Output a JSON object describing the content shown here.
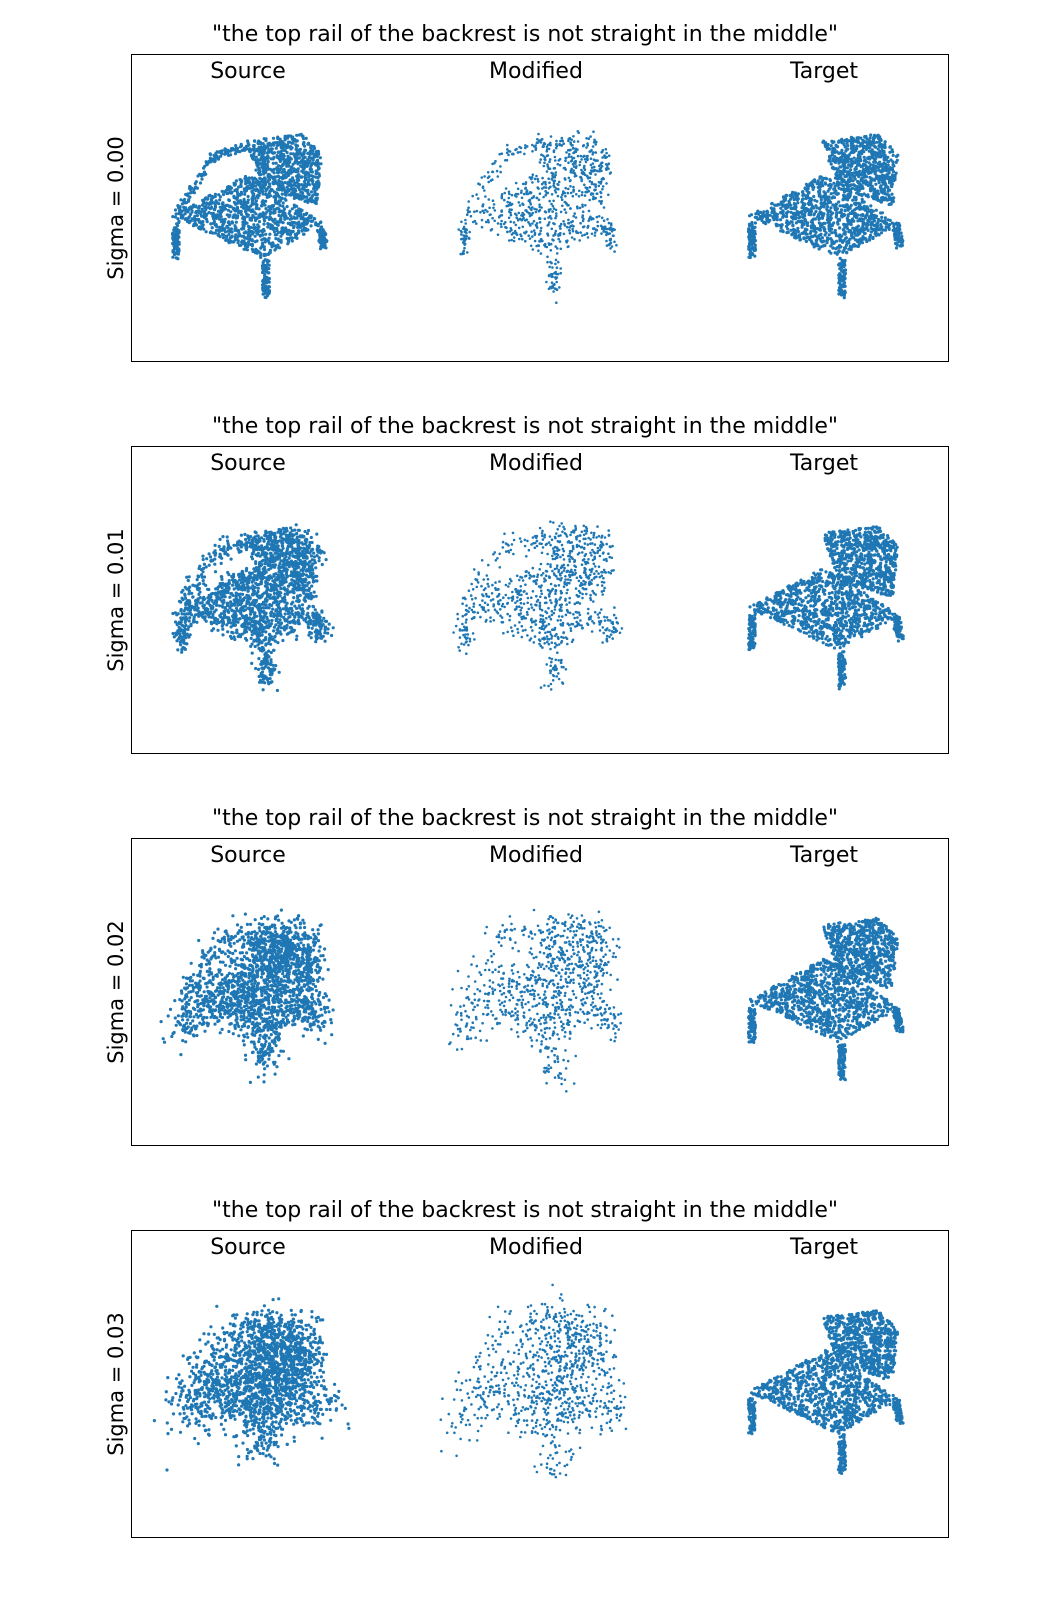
{
  "caption": "\"the top rail of the backrest is not straight in the middle\"",
  "columns": [
    "Source",
    "Modified",
    "Target"
  ],
  "rows": [
    {
      "label": "Sigma = 0.00",
      "sigma": 0.0
    },
    {
      "label": "Sigma = 0.01",
      "sigma": 0.01
    },
    {
      "label": "Sigma = 0.02",
      "sigma": 0.02
    },
    {
      "label": "Sigma = 0.03",
      "sigma": 0.03
    }
  ],
  "colors": {
    "points": "#1f77b4",
    "text": "#000000",
    "frame": "#000000"
  }
}
